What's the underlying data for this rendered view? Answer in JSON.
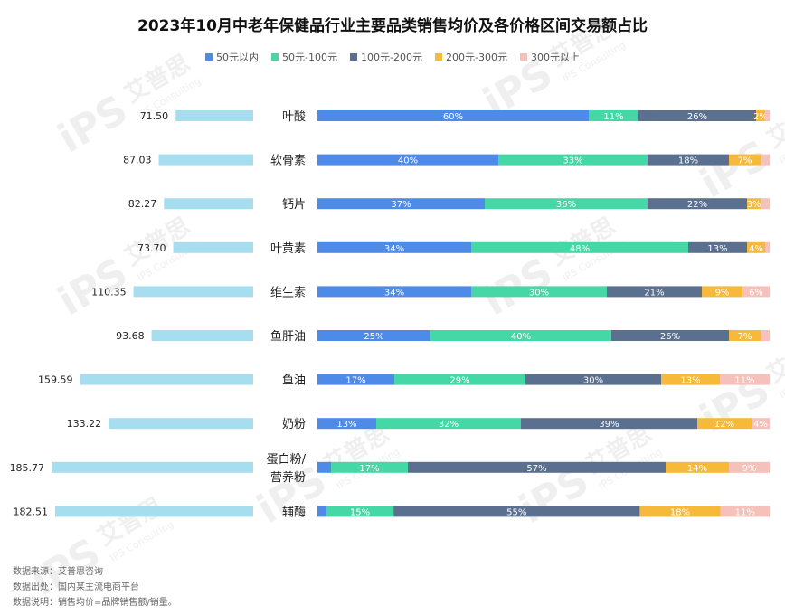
{
  "title": "2023年10月中老年保健品行业主要品类销售均价及各价格区间交易额占比",
  "legend": [
    {
      "label": "50元以内",
      "color": "#4e8ae8"
    },
    {
      "label": "50元-100元",
      "color": "#45d7a6"
    },
    {
      "label": "100元-200元",
      "color": "#5b6f8e"
    },
    {
      "label": "200元-300元",
      "color": "#f7b93a"
    },
    {
      "label": "300元以上",
      "color": "#f6c0bb"
    }
  ],
  "chart_data": {
    "type": "bar",
    "title": "2023年10月中老年保健品行业主要品类销售均价及各价格区间交易额占比",
    "categories": [
      "叶酸",
      "软骨素",
      "钙片",
      "叶黄素",
      "维生素",
      "鱼肝油",
      "鱼油",
      "奶粉",
      "蛋白粉/营养粉",
      "辅酶"
    ],
    "category_lines": [
      [
        "叶酸"
      ],
      [
        "软骨素"
      ],
      [
        "钙片"
      ],
      [
        "叶黄素"
      ],
      [
        "维生素"
      ],
      [
        "鱼肝油"
      ],
      [
        "鱼油"
      ],
      [
        "奶粉"
      ],
      [
        "蛋白粉/",
        "营养粉"
      ],
      [
        "辅酶"
      ]
    ],
    "avg_price": {
      "name": "销售均价",
      "values": [
        71.5,
        87.03,
        82.27,
        73.7,
        110.35,
        93.68,
        159.59,
        133.22,
        185.77,
        182.51
      ],
      "labels": [
        "71.50",
        "87.03",
        "82.27",
        "73.70",
        "110.35",
        "93.68",
        "159.59",
        "133.22",
        "185.77",
        "182.51"
      ],
      "color": "#a6def0",
      "xlim": [
        0,
        200
      ]
    },
    "share": {
      "series": [
        {
          "name": "50元以内",
          "color": "#4e8ae8",
          "values": [
            60,
            40,
            37,
            34,
            34,
            25,
            17,
            13,
            3,
            2
          ]
        },
        {
          "name": "50元-100元",
          "color": "#45d7a6",
          "values": [
            11,
            33,
            36,
            48,
            30,
            40,
            29,
            32,
            17,
            15
          ]
        },
        {
          "name": "100元-200元",
          "color": "#5b6f8e",
          "values": [
            26,
            18,
            22,
            13,
            21,
            26,
            30,
            39,
            57,
            55
          ]
        },
        {
          "name": "200元-300元",
          "color": "#f7b93a",
          "values": [
            2,
            7,
            3,
            4,
            9,
            7,
            13,
            12,
            14,
            18
          ]
        },
        {
          "name": "300元以上",
          "color": "#f6c0bb",
          "values": [
            1,
            2,
            2,
            1,
            6,
            2,
            11,
            4,
            9,
            11
          ]
        }
      ],
      "labels": [
        [
          "60%",
          "11%",
          "26%",
          "2%",
          ""
        ],
        [
          "40%",
          "33%",
          "18%",
          "7%",
          ""
        ],
        [
          "37%",
          "36%",
          "22%",
          "3%",
          ""
        ],
        [
          "34%",
          "48%",
          "13%",
          "4%",
          ""
        ],
        [
          "34%",
          "30%",
          "21%",
          "9%",
          "6%"
        ],
        [
          "25%",
          "40%",
          "26%",
          "7%",
          ""
        ],
        [
          "17%",
          "29%",
          "30%",
          "13%",
          "11%"
        ],
        [
          "13%",
          "32%",
          "39%",
          "12%",
          "4%"
        ],
        [
          "",
          "17%",
          "57%",
          "14%",
          "9%"
        ],
        [
          "",
          "15%",
          "55%",
          "18%",
          "11%"
        ]
      ],
      "unit": "%",
      "xlim": [
        0,
        100
      ]
    }
  },
  "footer": {
    "line1": "数据来源：艾普思咨询",
    "line2": "数据出处：国内某主流电商平台",
    "line3": "数据说明：销售均价=品牌销售额/销量。"
  },
  "watermark": {
    "logo": "iPS",
    "brand": "艾普思",
    "sub": "IPS Consulting"
  }
}
